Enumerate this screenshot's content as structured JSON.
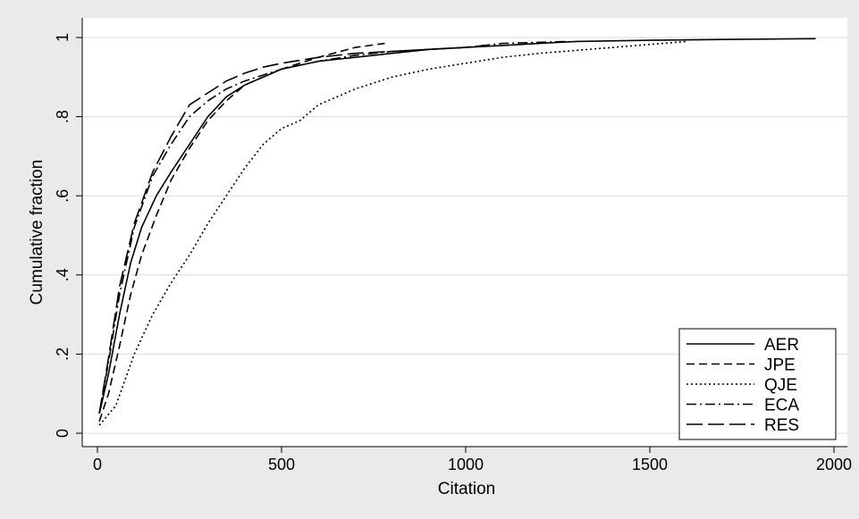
{
  "colors": {
    "outer_background": "#eaeaea",
    "plot_background": "#ffffff",
    "gridline": "#dcdcdc",
    "line": "#000000"
  },
  "chart_data": {
    "type": "line",
    "title": "",
    "xlabel": "Citation",
    "ylabel": "Cumulative fraction",
    "xlim": [
      0,
      2000
    ],
    "ylim": [
      0,
      1
    ],
    "xticks": [
      0,
      500,
      1000,
      1500,
      2000
    ],
    "xtick_labels": [
      "0",
      "500",
      "1000",
      "1500",
      "2000"
    ],
    "yticks": [
      0,
      0.2,
      0.4,
      0.6,
      0.8,
      1
    ],
    "ytick_labels": [
      "0",
      ".2",
      ".4",
      ".6",
      ".8",
      "1"
    ],
    "grid": "horizontal",
    "legend_position": "bottom-right",
    "series": [
      {
        "name": "AER",
        "style": "solid",
        "x": [
          5,
          30,
          60,
          90,
          120,
          160,
          200,
          250,
          300,
          350,
          400,
          500,
          600,
          700,
          800,
          900,
          1000,
          1100,
          1200,
          1300,
          1500,
          1700,
          1950
        ],
        "y": [
          0.05,
          0.15,
          0.3,
          0.43,
          0.52,
          0.6,
          0.66,
          0.73,
          0.8,
          0.85,
          0.88,
          0.92,
          0.94,
          0.95,
          0.96,
          0.97,
          0.975,
          0.98,
          0.985,
          0.99,
          0.993,
          0.995,
          0.997
        ]
      },
      {
        "name": "JPE",
        "style": "dashed",
        "x": [
          5,
          30,
          60,
          90,
          120,
          160,
          200,
          250,
          300,
          350,
          400,
          500,
          600,
          700,
          780
        ],
        "y": [
          0.03,
          0.1,
          0.22,
          0.35,
          0.45,
          0.55,
          0.64,
          0.72,
          0.79,
          0.84,
          0.88,
          0.92,
          0.95,
          0.975,
          0.985
        ]
      },
      {
        "name": "QJE",
        "style": "dotted",
        "x": [
          5,
          50,
          100,
          150,
          200,
          250,
          300,
          350,
          400,
          450,
          500,
          550,
          600,
          700,
          800,
          900,
          1000,
          1100,
          1200,
          1400,
          1600
        ],
        "y": [
          0.02,
          0.07,
          0.2,
          0.3,
          0.38,
          0.45,
          0.53,
          0.6,
          0.67,
          0.73,
          0.77,
          0.79,
          0.83,
          0.87,
          0.9,
          0.92,
          0.935,
          0.95,
          0.96,
          0.975,
          0.99
        ]
      },
      {
        "name": "ECA",
        "style": "dash-dot",
        "x": [
          5,
          30,
          60,
          100,
          150,
          200,
          250,
          300,
          350,
          400,
          500,
          600,
          700,
          800,
          900,
          1000,
          1100,
          1280
        ],
        "y": [
          0.05,
          0.18,
          0.35,
          0.52,
          0.65,
          0.73,
          0.8,
          0.84,
          0.87,
          0.89,
          0.92,
          0.94,
          0.955,
          0.965,
          0.97,
          0.975,
          0.985,
          0.99
        ]
      },
      {
        "name": "RES",
        "style": "long-dash",
        "x": [
          5,
          30,
          60,
          100,
          150,
          200,
          250,
          300,
          350,
          400,
          450,
          500,
          600,
          700,
          800,
          900,
          1000,
          1050
        ],
        "y": [
          0.05,
          0.19,
          0.37,
          0.53,
          0.66,
          0.75,
          0.83,
          0.86,
          0.89,
          0.91,
          0.925,
          0.935,
          0.95,
          0.96,
          0.965,
          0.97,
          0.975,
          0.98
        ]
      }
    ]
  }
}
